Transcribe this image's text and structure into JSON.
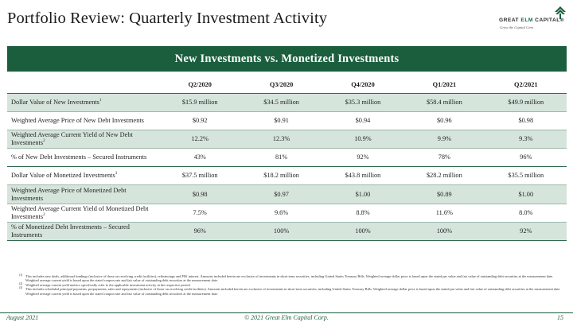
{
  "page": {
    "title": "Portfolio Review: Quarterly Investment Activity"
  },
  "logo": {
    "name_part1": "GREAT ",
    "name_part2": "ELM",
    "name_part3": " CAPITAL",
    "trademark": "®",
    "tagline": "Grow the Capital Gem",
    "mark_icon": "tree-icon",
    "accent_color": "#1b5e3d"
  },
  "banner": {
    "title": "New Investments vs. Monetized Investments"
  },
  "table": {
    "columns": [
      "Q2/2020",
      "Q3/2020",
      "Q4/2020",
      "Q1/2021",
      "Q2/2021"
    ],
    "rows": [
      {
        "label": "Dollar Value of New Investments",
        "sup": "1",
        "values": [
          "$15.9 million",
          "$34.5 million",
          "$35.3 million",
          "$58.4 million",
          "$49.9 million"
        ]
      },
      {
        "label": "Weighted Average Price of New Debt Investments",
        "sup": "",
        "values": [
          "$0.92",
          "$0.91",
          "$0.94",
          "$0.96",
          "$0.98"
        ]
      },
      {
        "label": "Weighted Average Current Yield of New Debt Investments",
        "sup": "2",
        "values": [
          "12.2%",
          "12.3%",
          "10.9%",
          "9.9%",
          "9.3%"
        ]
      },
      {
        "label": "% of New Debt Investments – Secured Instruments",
        "sup": "",
        "values": [
          "43%",
          "81%",
          "92%",
          "78%",
          "96%"
        ]
      },
      {
        "label": "Dollar Value of Monetized Investments",
        "sup": "3",
        "values": [
          "$37.5 million",
          "$18.2 million",
          "$43.8 million",
          "$28.2 million",
          "$35.5 million"
        ]
      },
      {
        "label": "Weighted Average Price of Monetized Debt Investments",
        "sup": "",
        "values": [
          "$0.98",
          "$0.97",
          "$1.00",
          "$0.89",
          "$1.00"
        ]
      },
      {
        "label": "Weighted Average Current Yield of Monetized Debt Investments",
        "sup": "2",
        "values": [
          "7.5%",
          "9.6%",
          "8.8%",
          "11.6%",
          "8.0%"
        ]
      },
      {
        "label": "% of Monetized Debt Investments – Secured Instruments",
        "sup": "",
        "values": [
          "96%",
          "100%",
          "100%",
          "100%",
          "92%"
        ]
      }
    ]
  },
  "footnotes": [
    {
      "num": "(1)",
      "text": "This includes new deals, additional fundings (inclusive of those on revolving credit facilities), refinancings and PIK interest. Amounts included herein are exclusive of investments in short-term securities, including United States Treasury Bills. Weighted average dollar price is based upon the stated par value and fair value of outstanding debt securities at the measurement date. Weighted average current yield is based upon the stated coupon rate and fair value of outstanding debt securities at the measurement date."
    },
    {
      "num": "(2)",
      "text": "Weighted average current yield metrics specifically refer to the applicable investment activity in the respective period."
    },
    {
      "num": "(3)",
      "text": "This includes scheduled principal payments, prepayments, sales and repayments (inclusive of those on revolving credit facilities). Amounts included herein are exclusive of investments in short-term securities, including United States Treasury Bills. Weighted average dollar price is based upon the stated par value and fair value of outstanding debt securities at the measurement date. Weighted average current yield is based upon the stated coupon rate and fair value of outstanding debt securities at the measurement date."
    }
  ],
  "footer": {
    "date": "August 2021",
    "copyright": "© 2021 Great Elm Capital Corp.",
    "page_number": "15"
  }
}
